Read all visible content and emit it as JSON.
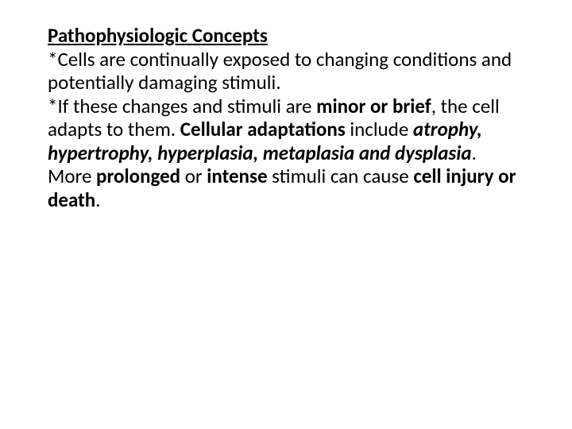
{
  "slide": {
    "title": " Pathophysiologic Concepts",
    "p1_a": "*Cells are continually exposed to changing conditions and potentially damaging stimuli.",
    "p2_a": "*If these changes and stimuli are ",
    "p2_b": "minor or brief",
    "p2_c": ", the cell adapts to them. ",
    "p2_d": "Cellular adaptations",
    "p2_e": " include ",
    "p2_f": "atrophy, hypertrophy, hyperplasia, metaplasia and dysplasia",
    "p2_g": ". More ",
    "p2_h": "prolonged",
    "p2_i": " or ",
    "p2_j": "intense",
    "p2_k": " stimuli can cause ",
    "p2_l": "cell injury or death",
    "p2_m": "."
  },
  "style": {
    "background": "#ffffff",
    "text_color": "#000000",
    "font_family": "Calibri, Arial, sans-serif",
    "font_size_pt": 19,
    "slide_width": 720,
    "slide_height": 540
  }
}
